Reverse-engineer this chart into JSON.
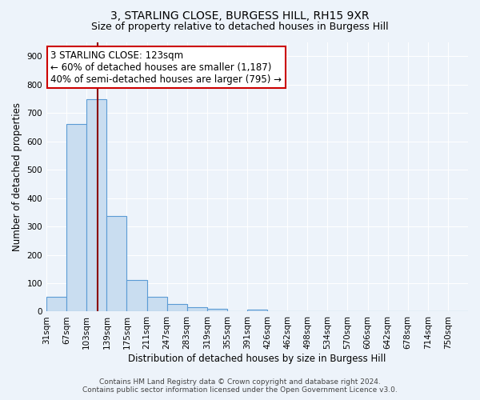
{
  "title": "3, STARLING CLOSE, BURGESS HILL, RH15 9XR",
  "subtitle": "Size of property relative to detached houses in Burgess Hill",
  "xlabel": "Distribution of detached houses by size in Burgess Hill",
  "ylabel": "Number of detached properties",
  "bar_labels": [
    "31sqm",
    "67sqm",
    "103sqm",
    "139sqm",
    "175sqm",
    "211sqm",
    "247sqm",
    "283sqm",
    "319sqm",
    "355sqm",
    "391sqm",
    "426sqm",
    "462sqm",
    "498sqm",
    "534sqm",
    "570sqm",
    "606sqm",
    "642sqm",
    "678sqm",
    "714sqm",
    "750sqm"
  ],
  "bar_heights": [
    52,
    660,
    748,
    338,
    110,
    52,
    27,
    15,
    10,
    0,
    8,
    0,
    0,
    0,
    0,
    0,
    0,
    0,
    0,
    0,
    0
  ],
  "bar_color": "#c9ddf0",
  "bar_edge_color": "#5b9bd5",
  "background_color": "#edf3fa",
  "grid_color": "#ffffff",
  "ylim": [
    0,
    950
  ],
  "yticks": [
    0,
    100,
    200,
    300,
    400,
    500,
    600,
    700,
    800,
    900
  ],
  "vline_color": "#8b0000",
  "annotation_line1": "3 STARLING CLOSE: 123sqm",
  "annotation_line2": "← 60% of detached houses are smaller (1,187)",
  "annotation_line3": "40% of semi-detached houses are larger (795) →",
  "annotation_box_color": "#ffffff",
  "annotation_box_edge_color": "#cc0000",
  "footer_text": "Contains HM Land Registry data © Crown copyright and database right 2024.\nContains public sector information licensed under the Open Government Licence v3.0.",
  "title_fontsize": 10,
  "subtitle_fontsize": 9,
  "axis_label_fontsize": 8.5,
  "tick_fontsize": 7.5,
  "annotation_fontsize": 8.5,
  "footer_fontsize": 6.5
}
